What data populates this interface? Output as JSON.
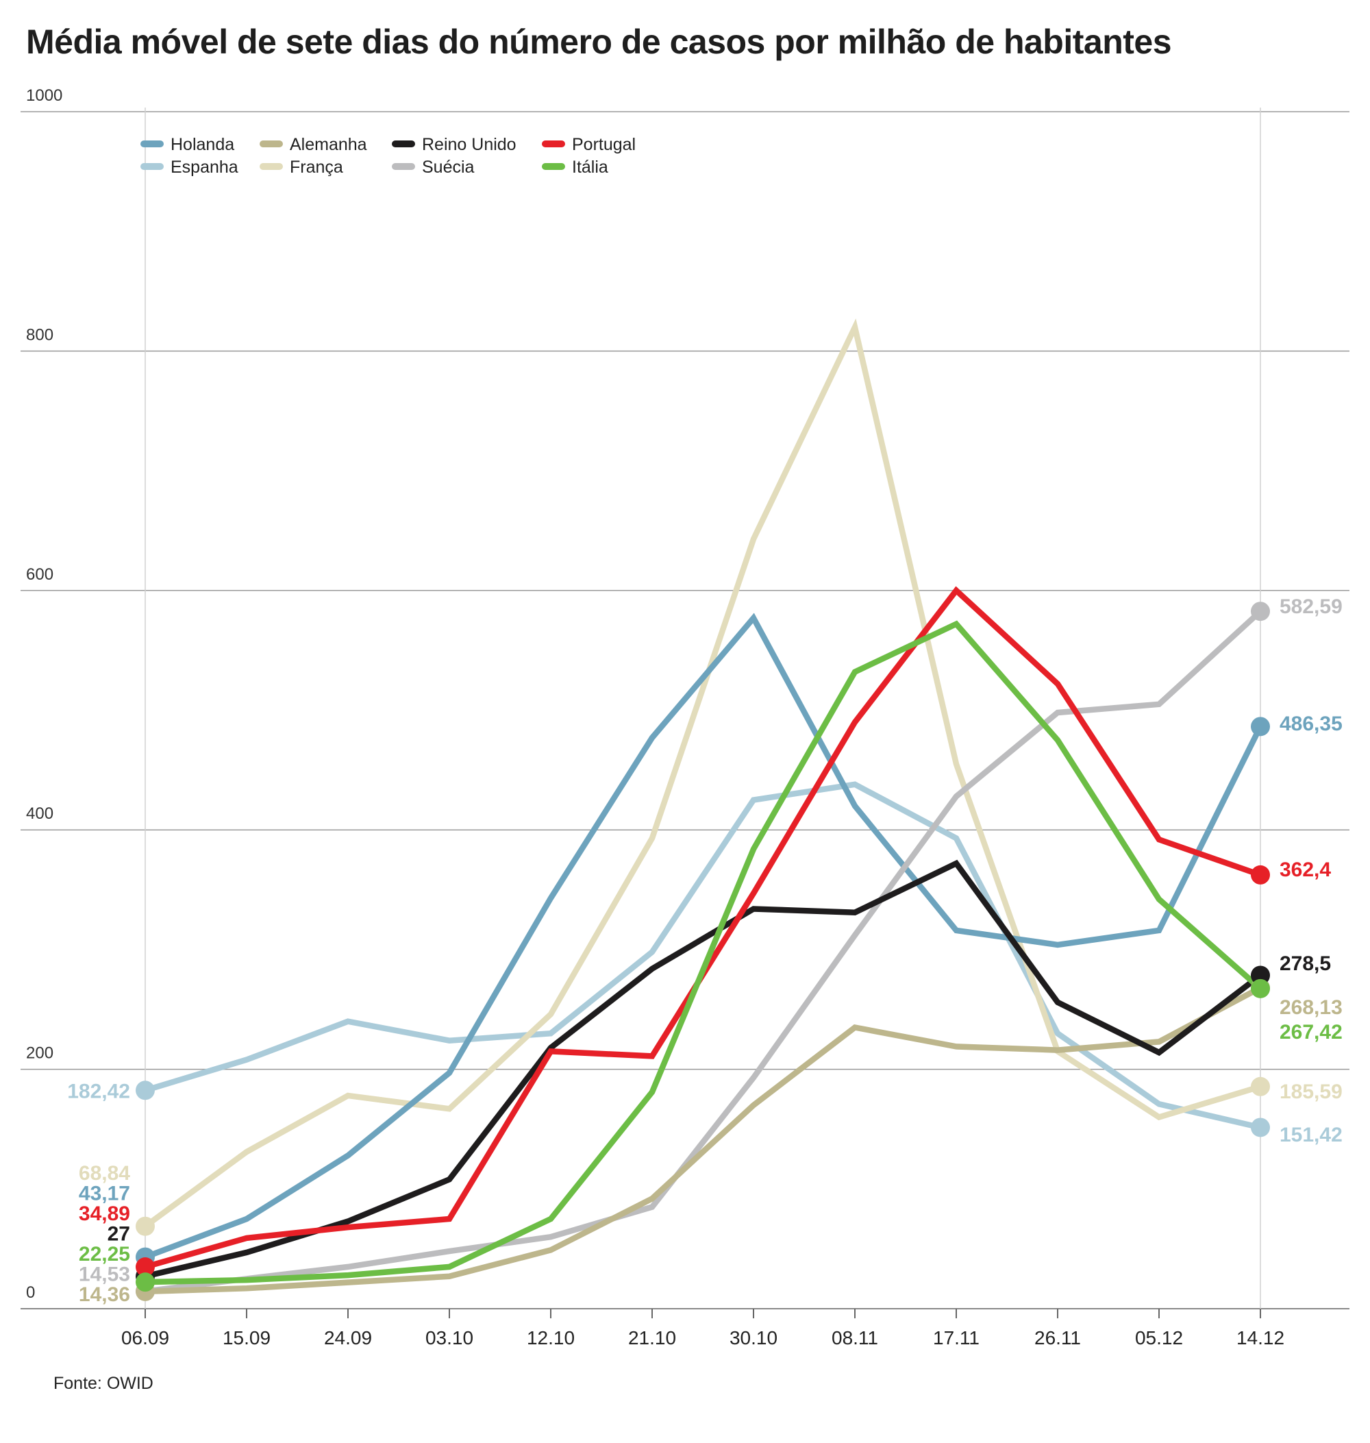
{
  "title": "Média móvel de sete dias do número de casos por milhão de habitantes",
  "source": "Fonte: OWID",
  "chart_data": {
    "type": "line",
    "title": "Média móvel de sete dias do número de casos por milhão de habitantes",
    "xlabel": "",
    "ylabel": "",
    "ylim": [
      0,
      1000
    ],
    "yticks": [
      "0",
      "200",
      "400",
      "600",
      "800",
      "1000"
    ],
    "yticks_values": [
      0,
      200,
      400,
      600,
      800,
      1000
    ],
    "grid": "horizontal",
    "legend_position": "top-left",
    "categories": [
      "06.09",
      "15.09",
      "24.09",
      "03.10",
      "12.10",
      "21.10",
      "30.10",
      "08.11",
      "17.11",
      "26.11",
      "05.12",
      "14.12"
    ],
    "series": [
      {
        "name": "Holanda",
        "color": "#6da3bd",
        "values": [
          43.17,
          75,
          128,
          197,
          343,
          477,
          577,
          420,
          316,
          304,
          316,
          486.35
        ],
        "first_label": "43,17",
        "last_label": "486,35"
      },
      {
        "name": "Espanha",
        "color": "#aacbd9",
        "values": [
          182.42,
          208,
          240,
          224,
          230,
          298,
          425,
          438,
          393,
          230,
          171,
          151.42
        ],
        "first_label": "182,42",
        "last_label": "151,42"
      },
      {
        "name": "Alemanha",
        "color": "#bdb68c",
        "values": [
          14.36,
          17,
          22,
          27,
          49,
          92,
          170,
          235,
          219,
          216,
          223,
          268.13
        ],
        "first_label": "14,36",
        "last_label": "268,13"
      },
      {
        "name": "França",
        "color": "#e2dcbb",
        "values": [
          68.84,
          131,
          178,
          167,
          246,
          393,
          643,
          820,
          455,
          215,
          160,
          185.59
        ],
        "first_label": "68,84",
        "last_label": "185,59"
      },
      {
        "name": "Reino Unido",
        "color": "#1e1c1d",
        "values": [
          27,
          47,
          73,
          108,
          218,
          284,
          334,
          331,
          372,
          256,
          214,
          278.5
        ],
        "first_label": "27",
        "last_label": "278,5"
      },
      {
        "name": "Suécia",
        "color": "#bcbcbe",
        "values": [
          14.53,
          25,
          35,
          48,
          60,
          85,
          193,
          312,
          428,
          498,
          505,
          582.59
        ],
        "first_label": "14,53",
        "last_label": "582,59"
      },
      {
        "name": "Portugal",
        "color": "#e62027",
        "values": [
          34.89,
          59,
          68,
          75,
          215,
          211,
          347,
          490,
          600,
          522,
          392,
          362.4
        ],
        "first_label": "34,89",
        "last_label": "362,4"
      },
      {
        "name": "Itália",
        "color": "#6cbd45",
        "values": [
          22.25,
          24,
          28,
          35,
          75,
          181,
          384,
          532,
          572,
          475,
          342,
          267.42
        ],
        "first_label": "22,25",
        "last_label": "267,42"
      }
    ],
    "draw_order": [
      "Espanha",
      "França",
      "Holanda",
      "Suécia",
      "Alemanha",
      "Reino Unido",
      "Portugal",
      "Itália"
    ],
    "legend_order": [
      "Holanda",
      "Alemanha",
      "Reino Unido",
      "Portugal",
      "Espanha",
      "França",
      "Suécia",
      "Itália"
    ],
    "first_label_order": [
      "Espanha",
      "França",
      "Holanda",
      "Portugal",
      "Reino Unido",
      "Itália",
      "Suécia",
      "Alemanha"
    ],
    "last_label_order": [
      "Suécia",
      "Holanda",
      "Portugal",
      "Reino Unido",
      "Alemanha",
      "Itália",
      "França",
      "Espanha"
    ]
  }
}
